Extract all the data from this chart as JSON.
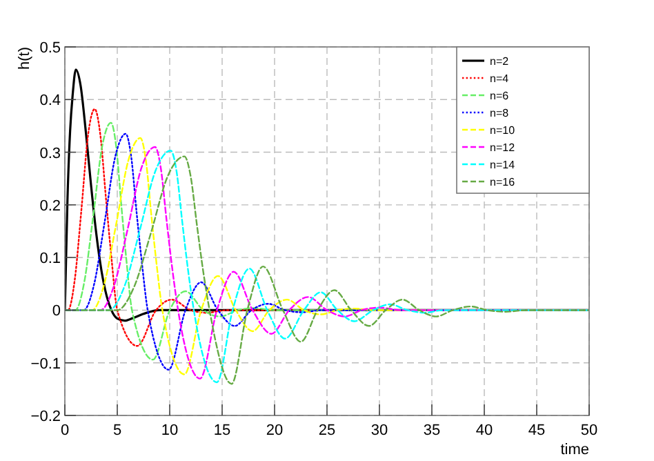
{
  "chart_data": {
    "type": "line",
    "xlabel": "time",
    "ylabel": "h(t)",
    "xlim": [
      0,
      50
    ],
    "ylim": [
      -0.2,
      0.5
    ],
    "xticks": [
      0,
      5,
      10,
      15,
      20,
      25,
      30,
      35,
      40,
      45,
      50
    ],
    "yticks": [
      {
        "value": -0.2,
        "label": "−0.2"
      },
      {
        "value": -0.1,
        "label": "−0.1"
      },
      0,
      0.1,
      0.2,
      0.3,
      0.4,
      0.5
    ],
    "grid": true,
    "legend": "top right",
    "series": [
      {
        "name": "n=2",
        "color": "#000000",
        "line_style": "solid",
        "x": [
          0,
          0.25,
          0.5,
          0.75,
          1.05,
          1.5,
          2,
          2.5,
          3,
          3.5,
          4,
          4.44,
          5,
          5.7,
          6.5,
          7.5,
          9,
          50
        ],
        "values": [
          0,
          0.21,
          0.34,
          0.41,
          0.457,
          0.427,
          0.339,
          0.237,
          0.145,
          0.074,
          0.026,
          0,
          -0.016,
          -0.02,
          -0.015,
          -0.007,
          0,
          0
        ]
      },
      {
        "name": "n=4",
        "color": "#ff0000",
        "line_style": "dotted",
        "x": [
          0,
          0.3,
          0.94,
          1.58,
          2.21,
          2.85,
          3.39,
          3.93,
          4.46,
          5,
          6.9,
          8.7,
          10.2,
          12,
          13.5,
          15.5,
          50
        ],
        "values": [
          0,
          0,
          0.057,
          0.191,
          0.332,
          0.382,
          0.332,
          0.21,
          0.096,
          0,
          -0.068,
          0,
          0.02,
          0,
          -0.005,
          0,
          0
        ]
      },
      {
        "name": "n=6",
        "color": "#66ee66",
        "line_style": "dashed",
        "x": [
          0,
          1,
          1.85,
          2.7,
          3.55,
          4.4,
          4.9,
          5.4,
          5.9,
          6.4,
          8.4,
          10,
          11.5,
          13.2,
          14.8,
          16.5,
          18,
          20,
          50
        ],
        "values": [
          0,
          0,
          0.053,
          0.178,
          0.31,
          0.356,
          0.31,
          0.196,
          0.089,
          0,
          -0.094,
          0,
          0.036,
          0,
          -0.012,
          0,
          0.004,
          0,
          0
        ]
      },
      {
        "name": "n=8",
        "color": "#0000ff",
        "line_style": "dotted",
        "x": [
          0,
          1.8,
          2.8,
          3.8,
          4.8,
          5.8,
          6.33,
          6.85,
          7.38,
          7.9,
          9.9,
          11.5,
          13,
          14.6,
          16.2,
          17.8,
          19.4,
          21,
          22.6,
          24.5,
          50
        ],
        "values": [
          0,
          0,
          0.05,
          0.168,
          0.291,
          0.335,
          0.291,
          0.184,
          0.084,
          0,
          -0.113,
          0,
          0.053,
          0,
          -0.03,
          0,
          0.012,
          0,
          -0.004,
          0,
          0
        ]
      },
      {
        "name": "n=10",
        "color": "#ffff00",
        "line_style": "dashed",
        "x": [
          0,
          2.6,
          3.75,
          4.9,
          6.05,
          7.2,
          7.73,
          8.25,
          8.78,
          9.3,
          11.4,
          13,
          14.6,
          16.3,
          17.9,
          19.5,
          21.2,
          22.8,
          24.4,
          26,
          27.5,
          29.5,
          50
        ],
        "values": [
          0,
          0,
          0.049,
          0.164,
          0.284,
          0.327,
          0.284,
          0.18,
          0.082,
          0,
          -0.122,
          0,
          0.065,
          0,
          -0.04,
          0,
          0.02,
          0,
          -0.008,
          0,
          0.003,
          0,
          0
        ]
      },
      {
        "name": "n=12",
        "color": "#ff00ff",
        "line_style": "dashed",
        "x": [
          0,
          3.4,
          4.7,
          6,
          7.3,
          8.6,
          9.15,
          9.7,
          10.25,
          10.8,
          12.9,
          14.5,
          16.1,
          17.9,
          19.7,
          21.4,
          23.2,
          25,
          26.7,
          28.3,
          30,
          32,
          50
        ],
        "values": [
          0,
          0,
          0.047,
          0.155,
          0.27,
          0.31,
          0.27,
          0.171,
          0.078,
          0,
          -0.13,
          0,
          0.073,
          0,
          -0.045,
          0,
          0.025,
          0,
          -0.012,
          0,
          0.005,
          0,
          0
        ]
      },
      {
        "name": "n=14",
        "color": "#00ffff",
        "line_style": "dashed",
        "x": [
          0,
          4.2,
          5.68,
          7.15,
          8.63,
          10.1,
          10.65,
          11.2,
          11.75,
          12.3,
          14.5,
          16,
          17.6,
          19.3,
          21,
          22.8,
          24.4,
          26,
          27.6,
          29.4,
          31,
          32.7,
          34.3,
          36,
          50
        ],
        "values": [
          0,
          0,
          0.045,
          0.152,
          0.264,
          0.303,
          0.264,
          0.167,
          0.076,
          0,
          -0.137,
          0,
          0.079,
          0,
          -0.054,
          0,
          0.034,
          0,
          -0.021,
          0,
          0.011,
          0,
          -0.005,
          0,
          0
        ]
      },
      {
        "name": "n=16",
        "color": "#66aa44",
        "line_style": "dashed",
        "x": [
          0,
          5,
          6.6,
          8.2,
          9.8,
          11.4,
          12,
          12.6,
          13.2,
          13.8,
          15.9,
          17.4,
          18.9,
          20.8,
          22.5,
          24.1,
          25.7,
          27.3,
          29,
          30.6,
          32.2,
          33.8,
          35.4,
          37,
          38.7,
          40.3,
          42,
          44,
          50
        ],
        "values": [
          0,
          0,
          0.044,
          0.146,
          0.254,
          0.292,
          0.254,
          0.161,
          0.073,
          0,
          -0.14,
          0,
          0.083,
          0,
          -0.06,
          0,
          0.038,
          0,
          -0.03,
          0,
          0.02,
          0,
          -0.012,
          0,
          0.007,
          0,
          -0.003,
          0,
          0
        ]
      }
    ]
  }
}
